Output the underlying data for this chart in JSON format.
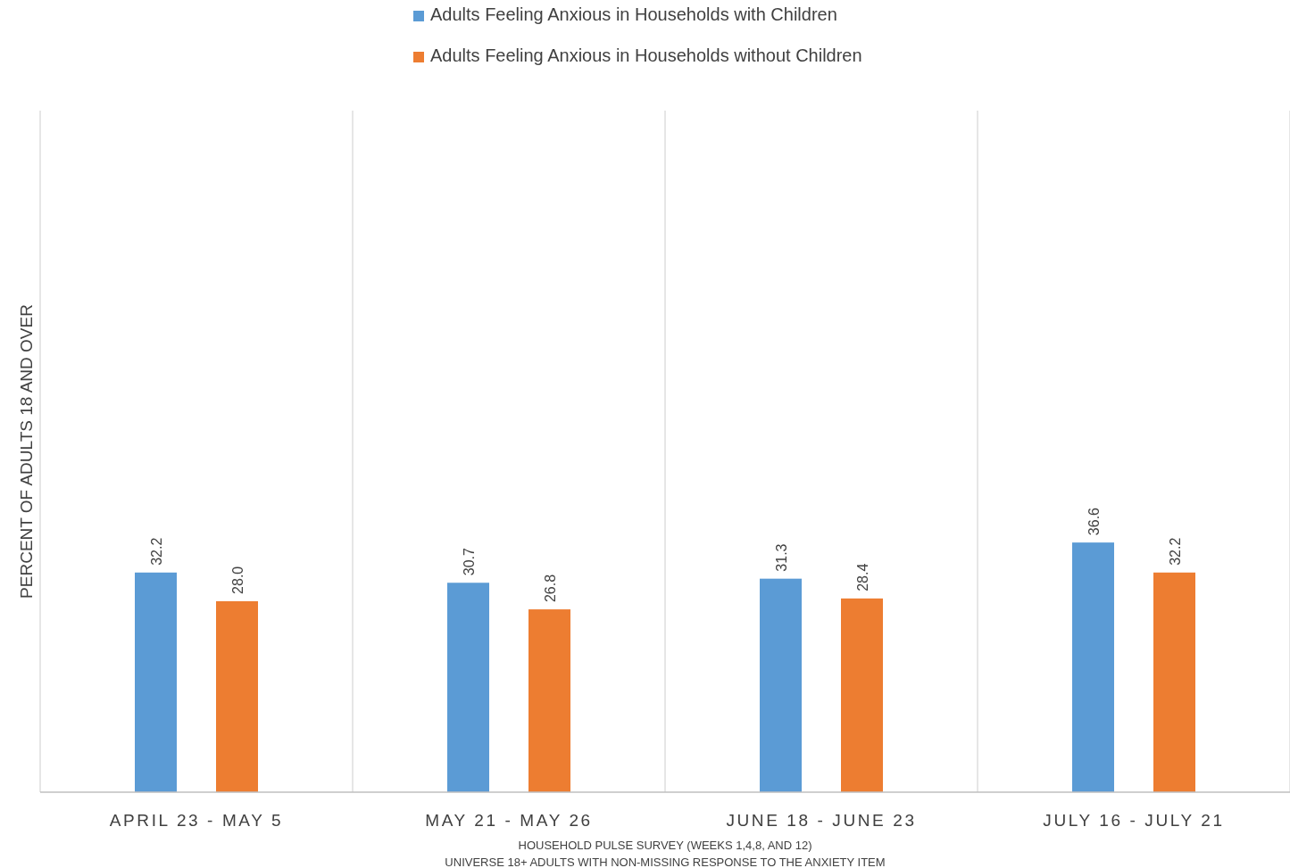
{
  "chart_data": {
    "type": "bar",
    "ylabel": "PERCENT OF ADULTS 18 AND OVER",
    "categories": [
      "APRIL 23 - MAY 5",
      "MAY 21 - MAY 26",
      "JUNE 18 - JUNE 23",
      "JULY 16 - JULY 21"
    ],
    "series": [
      {
        "name": "Adults Feeling Anxious in Households with Children",
        "color": "#5b9bd5",
        "values": [
          32.2,
          30.7,
          31.3,
          36.6
        ],
        "value_labels": [
          "32.2",
          "30.7",
          "31.3",
          "36.6"
        ]
      },
      {
        "name": "Adults Feeling Anxious in Households without Children",
        "color": "#ed7d31",
        "values": [
          28.0,
          26.8,
          28.4,
          32.2
        ],
        "value_labels": [
          "28.0",
          "26.8",
          "28.4",
          "32.2"
        ]
      }
    ],
    "tick_labels": "x",
    "grid": "x",
    "legend": "top",
    "annotations": [
      "HOUSEHOLD PULSE SURVEY (WEEKS 1,4,8, AND 12)",
      "UNIVERSE 18+ ADULTS WITH NON-MISSING RESPONSE TO THE ANXIETY ITEM"
    ]
  }
}
